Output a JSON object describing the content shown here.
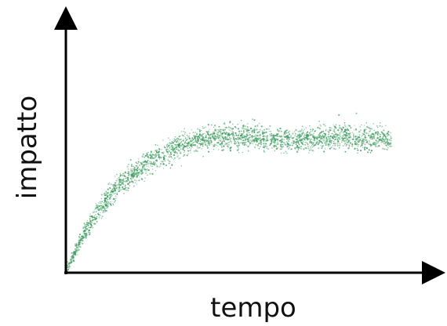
{
  "chart_data": {
    "type": "scatter",
    "title": "",
    "xlabel": "tempo",
    "ylabel": "impatto",
    "xlim": [
      0,
      10
    ],
    "ylim": [
      0,
      10
    ],
    "grid": false,
    "legend": "none",
    "trend": [
      {
        "x": 0.0,
        "y": 0.0
      },
      {
        "x": 0.5,
        "y": 1.6
      },
      {
        "x": 1.0,
        "y": 2.8
      },
      {
        "x": 1.5,
        "y": 3.7
      },
      {
        "x": 2.0,
        "y": 4.3
      },
      {
        "x": 2.5,
        "y": 4.8
      },
      {
        "x": 3.0,
        "y": 5.2
      },
      {
        "x": 3.5,
        "y": 5.5
      },
      {
        "x": 4.0,
        "y": 5.7
      },
      {
        "x": 4.5,
        "y": 5.75
      },
      {
        "x": 5.0,
        "y": 5.7
      },
      {
        "x": 5.5,
        "y": 5.65
      },
      {
        "x": 6.0,
        "y": 5.6
      },
      {
        "x": 6.5,
        "y": 5.6
      },
      {
        "x": 7.0,
        "y": 5.65
      },
      {
        "x": 7.5,
        "y": 5.7
      },
      {
        "x": 8.0,
        "y": 5.65
      },
      {
        "x": 8.5,
        "y": 5.7
      },
      {
        "x": 9.0,
        "y": 5.6
      }
    ],
    "spread": 0.45,
    "point_count": 2600
  },
  "colors": {
    "points": "#3a9a5c",
    "axis": "#000000"
  }
}
